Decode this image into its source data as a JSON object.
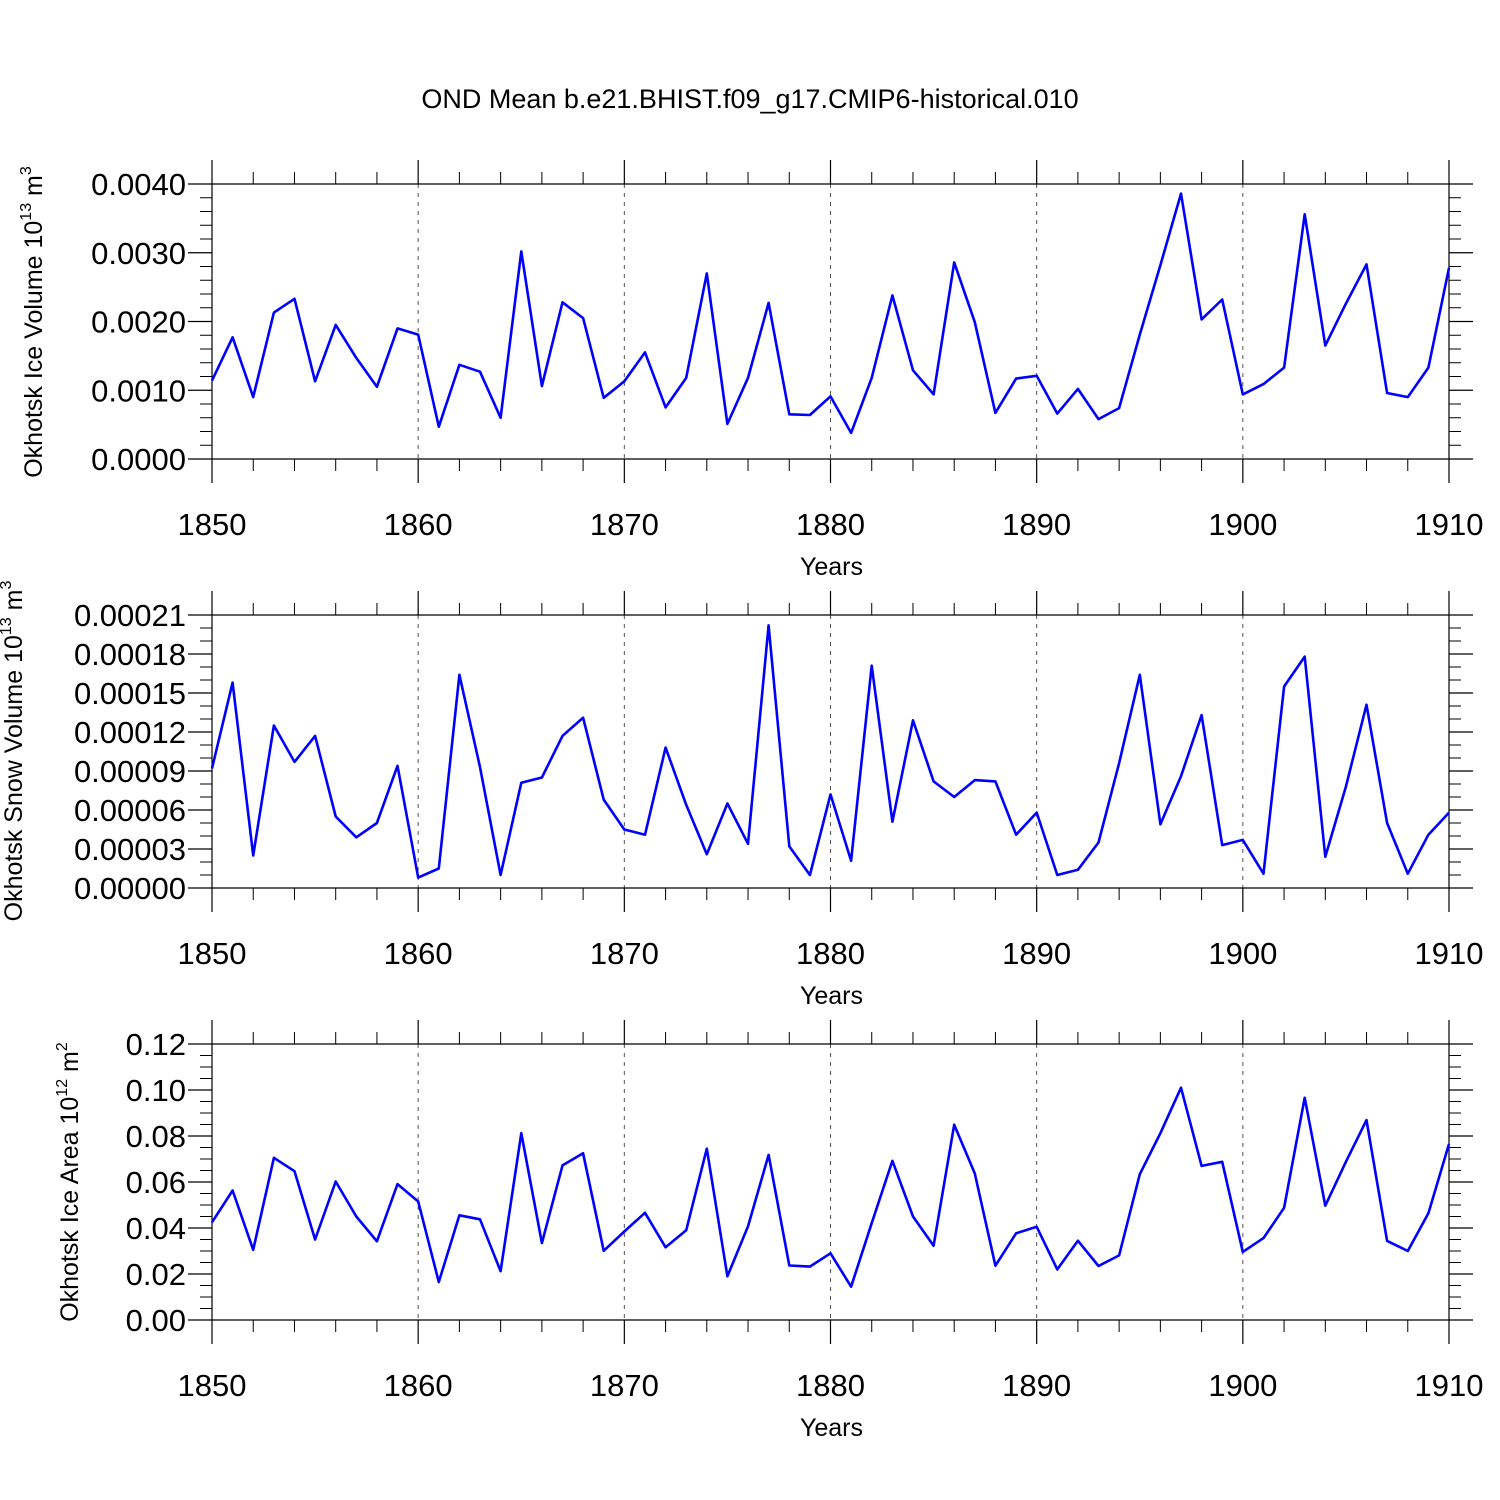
{
  "title": "OND Mean b.e21.BHIST.f09_g17.CMIP6-historical.010",
  "chart_data": [
    {
      "type": "line",
      "ylabel_main": "Okhotsk Ice Volume 10",
      "ylabel_exp": "13",
      "ylabel_unit": "m",
      "ylabel_unit_exp": "3",
      "xlabel": "Years",
      "xlim": [
        1850,
        1910
      ],
      "ylim": [
        0,
        0.004
      ],
      "yticks": [
        "0.0000",
        "0.0010",
        "0.0020",
        "0.0030",
        "0.0040"
      ],
      "xticks": [
        "1850",
        "1860",
        "1870",
        "1880",
        "1890",
        "1900",
        "1910"
      ],
      "series": [
        {
          "name": "Okhotsk Ice Volume",
          "color": "#0000ff",
          "x_start": 1850,
          "values": [
            0.00114,
            0.00177,
            0.0009,
            0.00213,
            0.00233,
            0.00113,
            0.00195,
            0.00147,
            0.00105,
            0.0019,
            0.00181,
            0.00047,
            0.00137,
            0.00127,
            0.0006,
            0.00302,
            0.00106,
            0.00228,
            0.00205,
            0.00089,
            0.00113,
            0.00155,
            0.00075,
            0.00118,
            0.0027,
            0.00051,
            0.00118,
            0.00227,
            0.00065,
            0.00064,
            0.00091,
            0.00038,
            0.00118,
            0.00238,
            0.00129,
            0.00094,
            0.00286,
            0.00199,
            0.00067,
            0.00117,
            0.00121,
            0.00066,
            0.00102,
            0.00058,
            0.00074,
            0.00181,
            0.00282,
            0.00386,
            0.00203,
            0.00232,
            0.00094,
            0.00109,
            0.00133,
            0.00356,
            0.00165,
            0.00226,
            0.00283,
            0.00096,
            0.0009,
            0.00133,
            0.00278
          ]
        }
      ]
    },
    {
      "type": "line",
      "ylabel_main": "Okhotsk Snow Volume 10",
      "ylabel_exp": "13",
      "ylabel_unit": "m",
      "ylabel_unit_exp": "3",
      "xlabel": "Years",
      "xlim": [
        1850,
        1910
      ],
      "ylim": [
        0,
        0.00021
      ],
      "yticks": [
        "0.00000",
        "0.00003",
        "0.00006",
        "0.00009",
        "0.00012",
        "0.00015",
        "0.00018",
        "0.00021"
      ],
      "xticks": [
        "1850",
        "1860",
        "1870",
        "1880",
        "1890",
        "1900",
        "1910"
      ],
      "series": [
        {
          "name": "Okhotsk Snow Volume",
          "color": "#0000ff",
          "x_start": 1850,
          "values": [
            9.2e-05,
            0.000158,
            2.5e-05,
            0.000125,
            9.7e-05,
            0.000117,
            5.5e-05,
            3.9e-05,
            5e-05,
            9.4e-05,
            8e-06,
            1.5e-05,
            0.000164,
            9.3e-05,
            1e-05,
            8.1e-05,
            8.5e-05,
            0.000117,
            0.000131,
            6.8e-05,
            4.5e-05,
            4.1e-05,
            0.000108,
            6.4e-05,
            2.6e-05,
            6.5e-05,
            3.4e-05,
            0.000202,
            3.2e-05,
            1e-05,
            7.2e-05,
            2.1e-05,
            0.000171,
            5.1e-05,
            0.000129,
            8.2e-05,
            7e-05,
            8.3e-05,
            8.2e-05,
            4.1e-05,
            5.8e-05,
            1e-05,
            1.4e-05,
            3.5e-05,
            9.6e-05,
            0.000164,
            4.9e-05,
            8.6e-05,
            0.000133,
            3.3e-05,
            3.7e-05,
            1.1e-05,
            0.000155,
            0.000178,
            2.4e-05,
            7.8e-05,
            0.000141,
            5e-05,
            1.1e-05,
            4.1e-05,
            5.8e-05
          ]
        }
      ]
    },
    {
      "type": "line",
      "ylabel_main": "Okhotsk Ice Area 10",
      "ylabel_exp": "12",
      "ylabel_unit": "m",
      "ylabel_unit_exp": "2",
      "xlabel": "Years",
      "xlim": [
        1850,
        1910
      ],
      "ylim": [
        0,
        0.12
      ],
      "yticks": [
        "0.00",
        "0.02",
        "0.04",
        "0.06",
        "0.08",
        "0.10",
        "0.12"
      ],
      "xticks": [
        "1850",
        "1860",
        "1870",
        "1880",
        "1890",
        "1900",
        "1910"
      ],
      "series": [
        {
          "name": "Okhotsk Ice Area",
          "color": "#0000ff",
          "x_start": 1850,
          "values": [
            0.0425,
            0.0563,
            0.0305,
            0.0705,
            0.0647,
            0.035,
            0.0602,
            0.045,
            0.0342,
            0.0591,
            0.0515,
            0.0165,
            0.0455,
            0.0438,
            0.0212,
            0.0812,
            0.0335,
            0.0672,
            0.0725,
            0.0301,
            0.0385,
            0.0466,
            0.0316,
            0.039,
            0.0745,
            0.019,
            0.0407,
            0.0718,
            0.0237,
            0.0232,
            0.029,
            0.0145,
            0.0421,
            0.0692,
            0.045,
            0.0323,
            0.0849,
            0.0637,
            0.0236,
            0.0377,
            0.0405,
            0.022,
            0.0345,
            0.0235,
            0.0281,
            0.0634,
            0.0812,
            0.101,
            0.067,
            0.0688,
            0.0296,
            0.0356,
            0.0488,
            0.0966,
            0.0497,
            0.0688,
            0.0869,
            0.0344,
            0.03,
            0.0464,
            0.0765
          ]
        }
      ]
    }
  ]
}
